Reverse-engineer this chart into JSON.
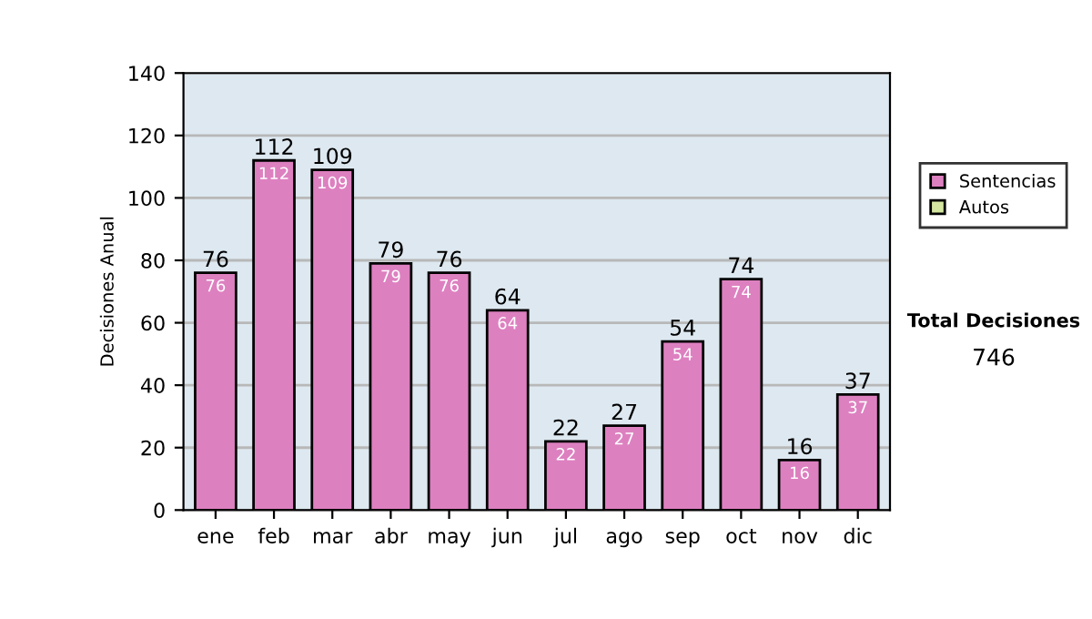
{
  "chart_data": {
    "type": "bar",
    "ylabel": "Decisiones Anual",
    "categories": [
      "ene",
      "feb",
      "mar",
      "abr",
      "may",
      "jun",
      "jul",
      "ago",
      "sep",
      "oct",
      "nov",
      "dic"
    ],
    "series": [
      {
        "name": "Sentencias",
        "color": "#dd80c0",
        "values": [
          76,
          112,
          109,
          79,
          76,
          64,
          22,
          27,
          54,
          74,
          16,
          37
        ],
        "value_labels": [
          "76",
          "112",
          "109",
          "79",
          "76",
          "64",
          "22",
          "27",
          "54",
          "74",
          "16",
          "37"
        ]
      },
      {
        "name": "Autos",
        "color": "#d4e6a0",
        "values": [
          null,
          null,
          null,
          null,
          null,
          null,
          null,
          null,
          null,
          null,
          null,
          null
        ]
      }
    ],
    "stacked": true,
    "totals": [
      "76",
      "112",
      "109",
      "79",
      "76",
      "64",
      "22",
      "27",
      "54",
      "74",
      "16",
      "37"
    ],
    "ylim": [
      0,
      140
    ],
    "yticks": [
      0,
      20,
      40,
      60,
      80,
      100,
      120,
      140
    ],
    "grid": "y",
    "legend": "right",
    "annotations": [
      "Total Decisiones",
      "746"
    ]
  }
}
